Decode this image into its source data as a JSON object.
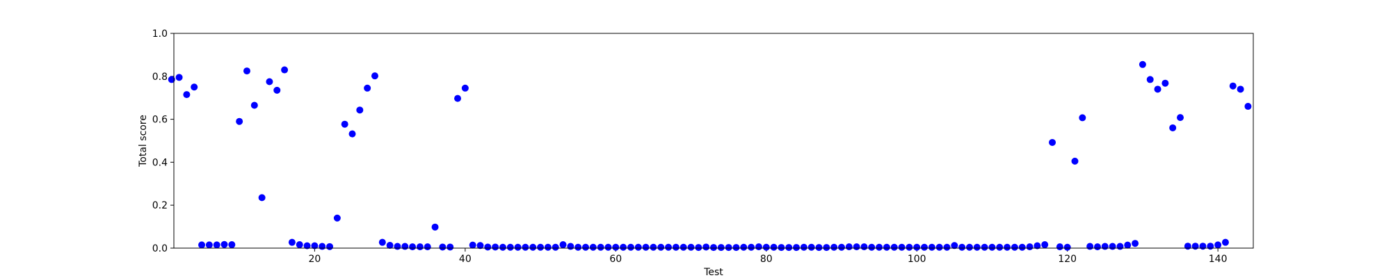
{
  "colors": {
    "marker": "#0000ff",
    "axes": "#000000",
    "background": "#ffffff"
  },
  "chart_data": {
    "type": "scatter",
    "xlabel": "Test",
    "ylabel": "Total score",
    "xlim": [
      1.3,
      144.7
    ],
    "ylim": [
      0,
      1.0
    ],
    "xticks": [
      20,
      40,
      60,
      80,
      100,
      120,
      140
    ],
    "xtick_labels": [
      "20",
      "40",
      "60",
      "80",
      "100",
      "120",
      "140"
    ],
    "yticks": [
      0.0,
      0.2,
      0.4,
      0.6,
      0.8,
      1.0
    ],
    "ytick_labels": [
      "0.0",
      "0.2",
      "0.4",
      "0.6",
      "0.8",
      "1.0"
    ],
    "grid": false,
    "series": [
      {
        "color": "#0000ff",
        "x": [
          1,
          2,
          3,
          4,
          5,
          6,
          7,
          8,
          9,
          10,
          11,
          12,
          13,
          14,
          15,
          16,
          17,
          18,
          19,
          20,
          21,
          22,
          23,
          24,
          25,
          26,
          27,
          28,
          29,
          30,
          31,
          32,
          33,
          34,
          35,
          36,
          37,
          38,
          39,
          40,
          41,
          42,
          43,
          44,
          45,
          46,
          47,
          48,
          49,
          50,
          51,
          52,
          53,
          54,
          55,
          56,
          57,
          58,
          59,
          60,
          61,
          62,
          63,
          64,
          65,
          66,
          67,
          68,
          69,
          70,
          71,
          72,
          73,
          74,
          75,
          76,
          77,
          78,
          79,
          80,
          81,
          82,
          83,
          84,
          85,
          86,
          87,
          88,
          89,
          90,
          91,
          92,
          93,
          94,
          95,
          96,
          97,
          98,
          99,
          100,
          101,
          102,
          103,
          104,
          105,
          106,
          107,
          108,
          109,
          110,
          111,
          112,
          113,
          114,
          115,
          116,
          117,
          118,
          119,
          120,
          121,
          122,
          123,
          124,
          125,
          126,
          127,
          128,
          129,
          130,
          131,
          132,
          133,
          134,
          135,
          136,
          137,
          138,
          139,
          140,
          141,
          142,
          143,
          144
        ],
        "y": [
          0.785,
          0.795,
          0.715,
          0.75,
          0.015,
          0.015,
          0.015,
          0.017,
          0.016,
          0.59,
          0.825,
          0.665,
          0.235,
          0.775,
          0.735,
          0.83,
          0.027,
          0.016,
          0.011,
          0.011,
          0.008,
          0.007,
          0.14,
          0.577,
          0.532,
          0.643,
          0.745,
          0.802,
          0.027,
          0.013,
          0.008,
          0.008,
          0.006,
          0.006,
          0.006,
          0.098,
          0.005,
          0.005,
          0.697,
          0.745,
          0.014,
          0.012,
          0.005,
          0.005,
          0.004,
          0.004,
          0.004,
          0.004,
          0.004,
          0.004,
          0.004,
          0.004,
          0.016,
          0.008,
          0.004,
          0.004,
          0.004,
          0.004,
          0.004,
          0.004,
          0.004,
          0.004,
          0.004,
          0.004,
          0.004,
          0.004,
          0.004,
          0.004,
          0.004,
          0.004,
          0.003,
          0.005,
          0.003,
          0.003,
          0.003,
          0.003,
          0.004,
          0.004,
          0.006,
          0.004,
          0.004,
          0.003,
          0.003,
          0.003,
          0.004,
          0.004,
          0.003,
          0.003,
          0.004,
          0.004,
          0.006,
          0.006,
          0.006,
          0.004,
          0.004,
          0.004,
          0.004,
          0.004,
          0.004,
          0.004,
          0.004,
          0.004,
          0.004,
          0.004,
          0.012,
          0.004,
          0.004,
          0.004,
          0.004,
          0.004,
          0.004,
          0.004,
          0.004,
          0.004,
          0.006,
          0.011,
          0.016,
          0.492,
          0.006,
          0.004,
          0.405,
          0.607,
          0.008,
          0.006,
          0.008,
          0.008,
          0.008,
          0.014,
          0.022,
          0.855,
          0.785,
          0.74,
          0.768,
          0.56,
          0.608,
          0.009,
          0.009,
          0.009,
          0.009,
          0.015,
          0.027,
          0.755,
          0.74,
          0.66
        ]
      }
    ]
  }
}
